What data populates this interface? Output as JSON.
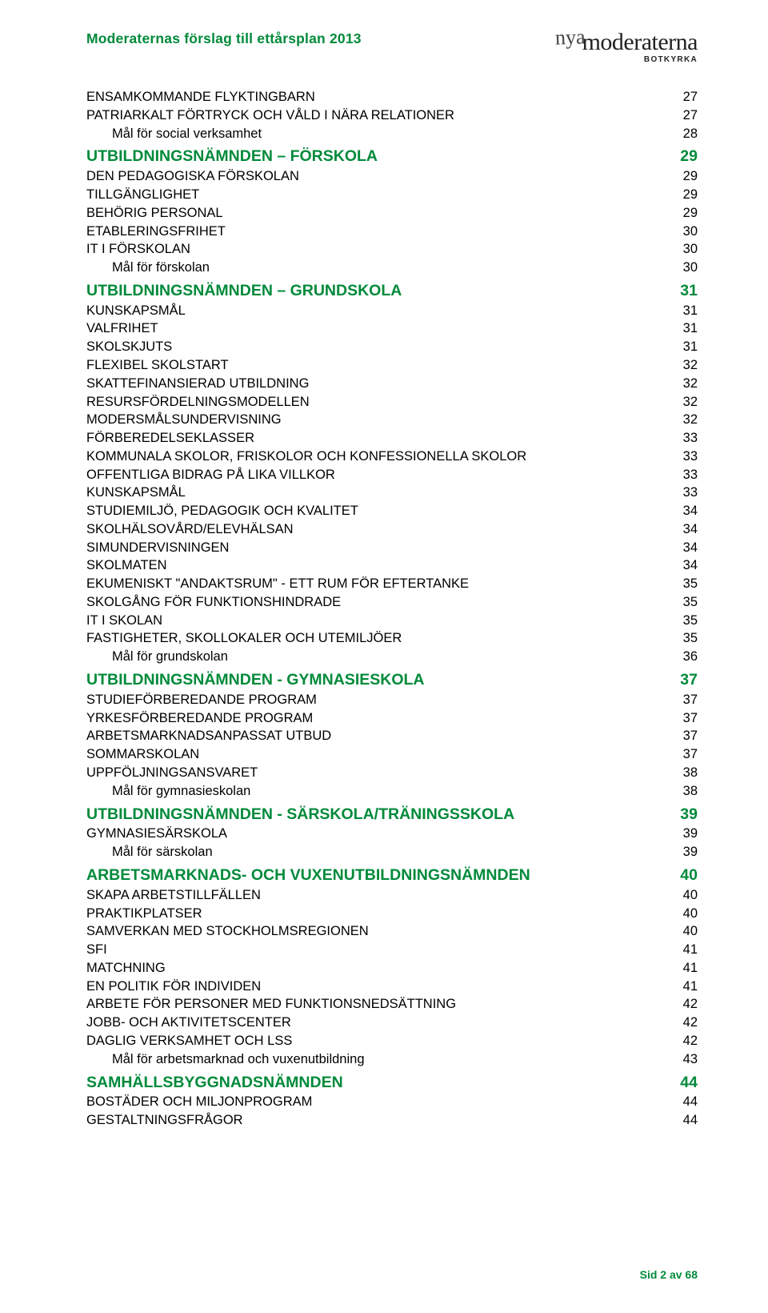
{
  "header": {
    "title": "Moderaternas förslag till ettårsplan 2013",
    "logo_nya": "nya",
    "logo_main": "moderaterna",
    "logo_sub": "BOTKYRKA"
  },
  "colors": {
    "accent": "#008a3a",
    "text": "#000000",
    "bg": "#ffffff"
  },
  "toc": [
    {
      "lvl": 2,
      "upper": true,
      "label": "ENSAMKOMMANDE FLYKTINGBARN",
      "page": "27"
    },
    {
      "lvl": 2,
      "upper": true,
      "label": "PATRIARKALT FÖRTRYCK OCH VÅLD I NÄRA RELATIONER",
      "page": "27"
    },
    {
      "lvl": 3,
      "upper": false,
      "label": "Mål för social verksamhet",
      "page": "28"
    },
    {
      "lvl": 1,
      "upper": true,
      "label": "UTBILDNINGSNÄMNDEN – FÖRSKOLA",
      "page": "29"
    },
    {
      "lvl": 2,
      "upper": true,
      "label": "DEN PEDAGOGISKA FÖRSKOLAN",
      "page": "29"
    },
    {
      "lvl": 2,
      "upper": true,
      "label": "TILLGÄNGLIGHET",
      "page": "29"
    },
    {
      "lvl": 2,
      "upper": true,
      "label": "BEHÖRIG PERSONAL",
      "page": "29"
    },
    {
      "lvl": 2,
      "upper": true,
      "label": "ETABLERINGSFRIHET",
      "page": "30"
    },
    {
      "lvl": 2,
      "upper": true,
      "label": "IT I FÖRSKOLAN",
      "page": "30"
    },
    {
      "lvl": 3,
      "upper": false,
      "label": "Mål för förskolan",
      "page": "30"
    },
    {
      "lvl": 1,
      "upper": true,
      "label": "UTBILDNINGSNÄMNDEN – GRUNDSKOLA",
      "page": "31"
    },
    {
      "lvl": 2,
      "upper": true,
      "label": "KUNSKAPSMÅL",
      "page": "31"
    },
    {
      "lvl": 2,
      "upper": true,
      "label": "VALFRIHET",
      "page": "31"
    },
    {
      "lvl": 2,
      "upper": true,
      "label": "SKOLSKJUTS",
      "page": "31"
    },
    {
      "lvl": 2,
      "upper": true,
      "label": "FLEXIBEL SKOLSTART",
      "page": "32"
    },
    {
      "lvl": 2,
      "upper": true,
      "label": "SKATTEFINANSIERAD UTBILDNING",
      "page": "32"
    },
    {
      "lvl": 2,
      "upper": true,
      "label": "RESURSFÖRDELNINGSMODELLEN",
      "page": "32"
    },
    {
      "lvl": 2,
      "upper": true,
      "label": "MODERSMÅLSUNDERVISNING",
      "page": "32"
    },
    {
      "lvl": 2,
      "upper": true,
      "label": "FÖRBEREDELSEKLASSER",
      "page": "33"
    },
    {
      "lvl": 2,
      "upper": true,
      "label": "KOMMUNALA SKOLOR, FRISKOLOR OCH KONFESSIONELLA SKOLOR",
      "page": "33"
    },
    {
      "lvl": 2,
      "upper": true,
      "label": "OFFENTLIGA BIDRAG PÅ LIKA VILLKOR",
      "page": "33"
    },
    {
      "lvl": 2,
      "upper": true,
      "label": "KUNSKAPSMÅL",
      "page": "33"
    },
    {
      "lvl": 2,
      "upper": true,
      "label": "STUDIEMILJÖ, PEDAGOGIK OCH KVALITET",
      "page": "34"
    },
    {
      "lvl": 2,
      "upper": true,
      "label": "SKOLHÄLSOVÅRD/ELEVHÄLSAN",
      "page": "34"
    },
    {
      "lvl": 2,
      "upper": true,
      "label": "SIMUNDERVISNINGEN",
      "page": "34"
    },
    {
      "lvl": 2,
      "upper": true,
      "label": "SKOLMATEN",
      "page": "34"
    },
    {
      "lvl": 2,
      "upper": true,
      "label": "EKUMENISKT \"ANDAKTSRUM\" - ETT RUM FÖR EFTERTANKE",
      "page": "35"
    },
    {
      "lvl": 2,
      "upper": true,
      "label": "SKOLGÅNG FÖR FUNKTIONSHINDRADE",
      "page": "35"
    },
    {
      "lvl": 2,
      "upper": true,
      "label": "IT I SKOLAN",
      "page": "35"
    },
    {
      "lvl": 2,
      "upper": true,
      "label": "FASTIGHETER, SKOLLOKALER OCH UTEMILJÖER",
      "page": "35"
    },
    {
      "lvl": 3,
      "upper": false,
      "label": "Mål för grundskolan",
      "page": "36"
    },
    {
      "lvl": 1,
      "upper": true,
      "label": "UTBILDNINGSNÄMNDEN - GYMNASIESKOLA",
      "page": "37"
    },
    {
      "lvl": 2,
      "upper": true,
      "label": "STUDIEFÖRBEREDANDE PROGRAM",
      "page": "37"
    },
    {
      "lvl": 2,
      "upper": true,
      "label": "YRKESFÖRBEREDANDE PROGRAM",
      "page": "37"
    },
    {
      "lvl": 2,
      "upper": true,
      "label": "ARBETSMARKNADSANPASSAT UTBUD",
      "page": "37"
    },
    {
      "lvl": 2,
      "upper": true,
      "label": "SOMMARSKOLAN",
      "page": "37"
    },
    {
      "lvl": 2,
      "upper": true,
      "label": "UPPFÖLJNINGSANSVARET",
      "page": "38"
    },
    {
      "lvl": 3,
      "upper": false,
      "label": "Mål för gymnasieskolan",
      "page": "38"
    },
    {
      "lvl": 1,
      "upper": true,
      "label": "UTBILDNINGSNÄMNDEN - SÄRSKOLA/TRÄNINGSSKOLA",
      "page": "39"
    },
    {
      "lvl": 2,
      "upper": true,
      "label": "GYMNASIESÄRSKOLA",
      "page": "39"
    },
    {
      "lvl": 3,
      "upper": false,
      "label": "Mål för särskolan",
      "page": "39"
    },
    {
      "lvl": 1,
      "upper": true,
      "label": "ARBETSMARKNADS- OCH VUXENUTBILDNINGSNÄMNDEN",
      "page": "40"
    },
    {
      "lvl": 2,
      "upper": true,
      "label": "SKAPA ARBETSTILLFÄLLEN",
      "page": "40"
    },
    {
      "lvl": 2,
      "upper": true,
      "label": "PRAKTIKPLATSER",
      "page": "40"
    },
    {
      "lvl": 2,
      "upper": true,
      "label": "SAMVERKAN MED STOCKHOLMSREGIONEN",
      "page": "40"
    },
    {
      "lvl": 2,
      "upper": true,
      "label": "SFI",
      "page": "41"
    },
    {
      "lvl": 2,
      "upper": true,
      "label": "MATCHNING",
      "page": "41"
    },
    {
      "lvl": 2,
      "upper": true,
      "label": "EN POLITIK FÖR INDIVIDEN",
      "page": "41"
    },
    {
      "lvl": 2,
      "upper": true,
      "label": "ARBETE FÖR PERSONER MED FUNKTIONSNEDSÄTTNING",
      "page": "42"
    },
    {
      "lvl": 2,
      "upper": true,
      "label": "JOBB- OCH AKTIVITETSCENTER",
      "page": "42"
    },
    {
      "lvl": 2,
      "upper": true,
      "label": "DAGLIG VERKSAMHET OCH LSS",
      "page": "42"
    },
    {
      "lvl": 3,
      "upper": false,
      "label": "Mål för arbetsmarknad och vuxenutbildning",
      "page": "43"
    },
    {
      "lvl": 1,
      "upper": true,
      "label": "SAMHÄLLSBYGGNADSNÄMNDEN",
      "page": "44"
    },
    {
      "lvl": 2,
      "upper": true,
      "label": "BOSTÄDER OCH MILJONPROGRAM",
      "page": "44"
    },
    {
      "lvl": 2,
      "upper": true,
      "label": "GESTALTNINGSFRÅGOR",
      "page": "44"
    }
  ],
  "footer": {
    "text": "Sid 2 av 68"
  }
}
